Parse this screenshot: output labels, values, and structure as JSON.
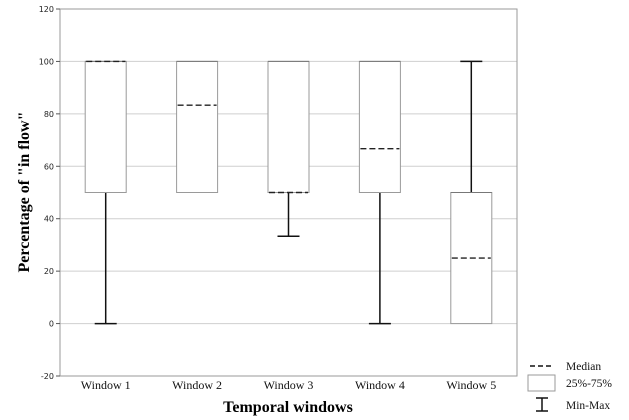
{
  "chart_data": {
    "type": "boxplot",
    "xlabel": "Temporal windows",
    "ylabel": "Percentage of \"in flow\"",
    "ylim": [
      -20,
      120
    ],
    "yticks": [
      -20,
      0,
      20,
      40,
      60,
      80,
      100,
      120
    ],
    "grid": true,
    "legend_position": "bottom-right",
    "categories": [
      "Window 1",
      "Window 2",
      "Window 3",
      "Window 4",
      "Window 5"
    ],
    "boxes": [
      {
        "category": "Window 1",
        "min": 0,
        "q1": 50,
        "median": 100,
        "q3": 100,
        "max": 100
      },
      {
        "category": "Window 2",
        "min": 50,
        "q1": 50,
        "median": 83.3,
        "q3": 100,
        "max": 100
      },
      {
        "category": "Window 3",
        "min": 33.3,
        "q1": 50,
        "median": 50,
        "q3": 100,
        "max": 100
      },
      {
        "category": "Window 4",
        "min": 0,
        "q1": 50,
        "median": 66.7,
        "q3": 100,
        "max": 100
      },
      {
        "category": "Window 5",
        "min": 0,
        "q1": 0,
        "median": 25,
        "q3": 50,
        "max": 100
      }
    ],
    "legend": {
      "median": "Median",
      "box": "25%-75%",
      "whisker": "Min-Max"
    }
  }
}
